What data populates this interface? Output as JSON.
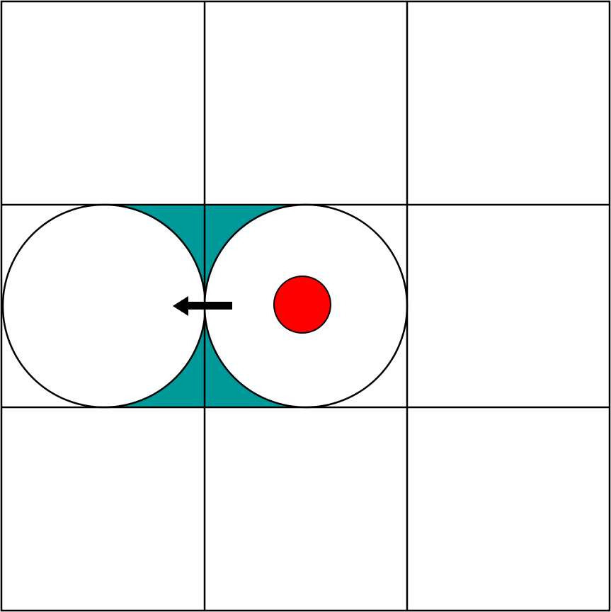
{
  "grid": {
    "rows": 3,
    "columns": 3
  },
  "colors": {
    "background": "#ffffff",
    "grid_line": "#000000",
    "circle_fill": "#ffffff",
    "circle_stroke": "#000000",
    "gap_fill": "#009999",
    "dot_fill": "#ff0000",
    "arrow": "#000000"
  },
  "diagram": {
    "circles": [
      {
        "id": "left-circle",
        "cell_row": 2,
        "cell_column": 1,
        "has_dot": false
      },
      {
        "id": "right-circle",
        "cell_row": 2,
        "cell_column": 2,
        "has_dot": true
      }
    ],
    "movement_arrow": {
      "direction": "left",
      "from": "right-circle",
      "toward": "left-circle"
    }
  }
}
